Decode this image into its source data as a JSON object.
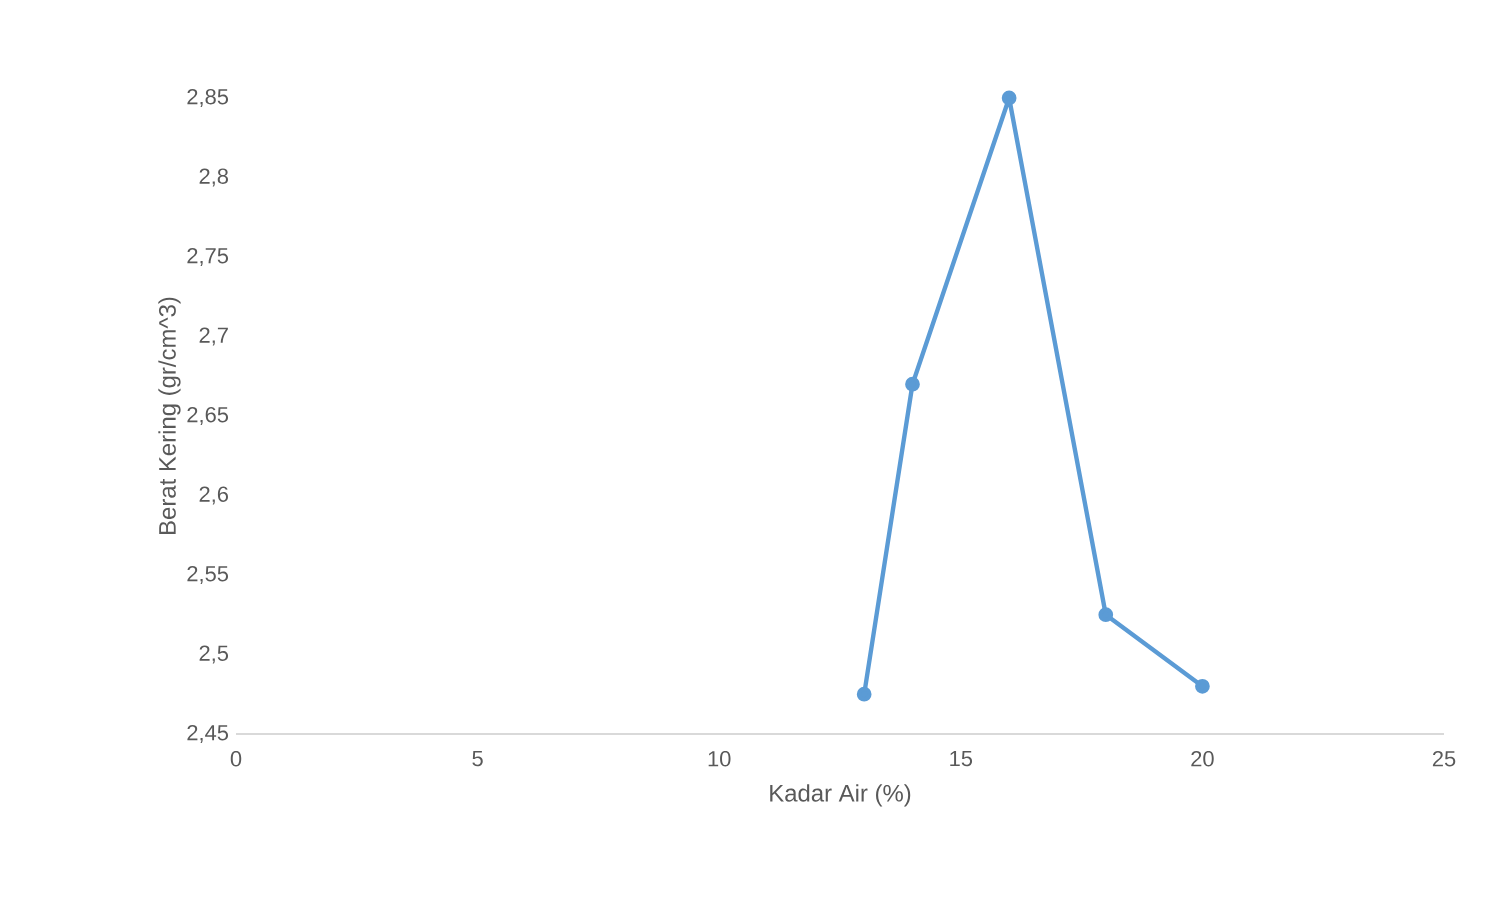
{
  "chart_data": {
    "type": "line",
    "xlabel": "Kadar Air (%)",
    "ylabel": "Berat Kering (gr/cm^3)",
    "x": [
      13,
      14,
      16,
      18,
      20
    ],
    "series": [
      {
        "color": "#5b9bd5",
        "values": [
          2.475,
          2.67,
          2.85,
          2.525,
          2.48
        ]
      }
    ],
    "xlim": [
      0,
      25
    ],
    "xticks": [
      0,
      5,
      10,
      15,
      20,
      25
    ],
    "ylim": [
      2.45,
      2.85
    ],
    "yticks": [
      {
        "value": 2.45,
        "label": "2,45"
      },
      {
        "value": 2.5,
        "label": "2,5"
      },
      {
        "value": 2.55,
        "label": "2,55"
      },
      {
        "value": 2.6,
        "label": "2,6"
      },
      {
        "value": 2.65,
        "label": "2,65"
      },
      {
        "value": 2.7,
        "label": "2,7"
      },
      {
        "value": 2.75,
        "label": "2,75"
      },
      {
        "value": 2.8,
        "label": "2,8"
      },
      {
        "value": 2.85,
        "label": "2,85"
      }
    ],
    "grid": false,
    "legend": false,
    "marker": "circle",
    "line_style": "solid"
  }
}
